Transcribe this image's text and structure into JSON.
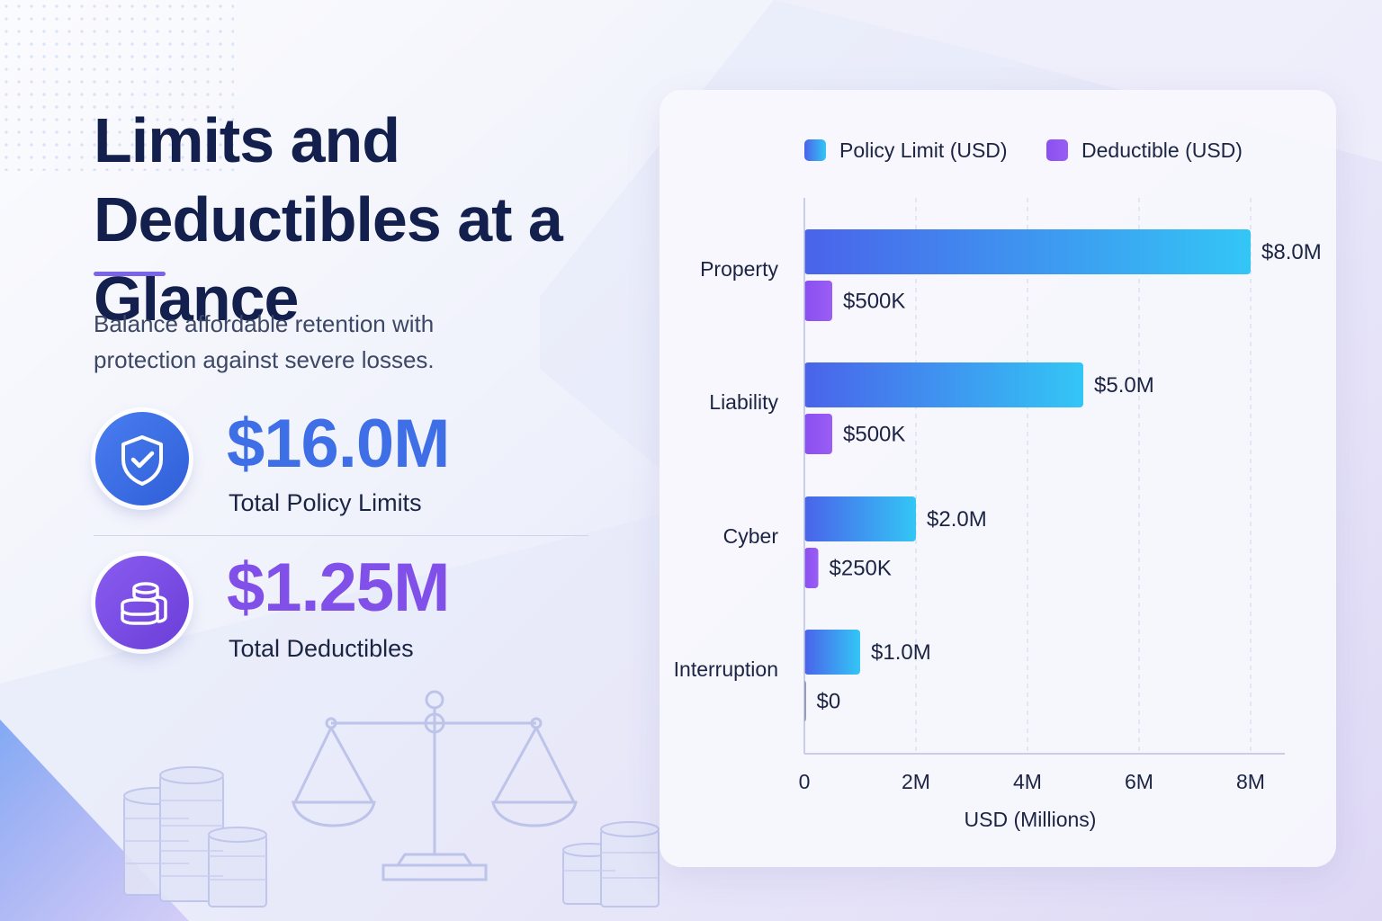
{
  "header": {
    "title": "Limits and Deductibles at a Glance",
    "subtitle": "Balance affordable retention with protection against severe losses."
  },
  "stats": {
    "limits": {
      "value": "$16.0M",
      "label": "Total Policy Limits",
      "icon": "shield-check-icon"
    },
    "deductibles": {
      "value": "$1.25M",
      "label": "Total Deductibles",
      "icon": "coin-stack-icon"
    }
  },
  "colors": {
    "limit_start": "#4a63ea",
    "limit_end": "#33c6f5",
    "deductible_start": "#8a4ff0",
    "deductible_end": "#9a5ef5",
    "title": "#13204d",
    "accent": "#7b63ea"
  },
  "chart_data": {
    "type": "bar",
    "orientation": "horizontal",
    "categories": [
      "Property",
      "Liability",
      "Cyber",
      "Interruption"
    ],
    "series": [
      {
        "name": "Policy Limit (USD)",
        "values": [
          8.0,
          5.0,
          2.0,
          1.0
        ],
        "labels": [
          "$8.0M",
          "$5.0M",
          "$2.0M",
          "$1.0M"
        ]
      },
      {
        "name": "Deductible (USD)",
        "values": [
          0.5,
          0.5,
          0.25,
          0
        ],
        "labels": [
          "$500K",
          "$500K",
          "$250K",
          "$0"
        ]
      }
    ],
    "xlabel": "USD (Millions)",
    "xlim": [
      0,
      8.6
    ],
    "xticks": [
      0,
      2,
      4,
      6,
      8
    ],
    "xtick_labels": [
      "0",
      "2M",
      "4M",
      "6M",
      "8M"
    ],
    "grid": true,
    "legend_position": "top"
  }
}
